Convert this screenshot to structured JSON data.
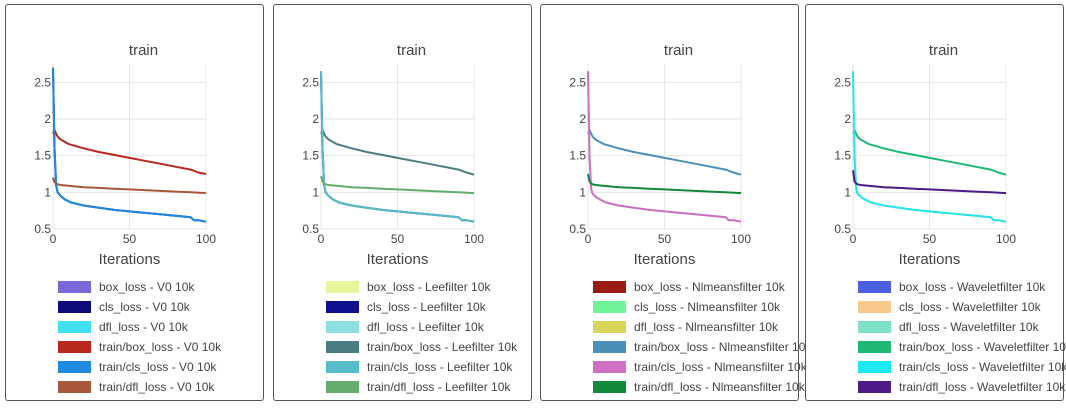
{
  "chart_data": [
    {
      "type": "line",
      "title": "train",
      "xlabel": "Iterations",
      "ylabel": "",
      "xlim": [
        0,
        100
      ],
      "ylim": [
        0.5,
        2.75
      ],
      "xticks": [
        "0",
        "50",
        "100"
      ],
      "yticks": [
        "0.5",
        "1",
        "1.5",
        "2",
        "2.5"
      ],
      "grid": true,
      "legend_position": "bottom",
      "series": [
        {
          "name": "box_loss - V0 10k",
          "color": "#7b68d8",
          "values": [],
          "x": []
        },
        {
          "name": "cls_loss - V0 10k",
          "color": "#0d0a7a",
          "x": [
            0,
            1,
            2,
            3,
            5,
            8,
            12,
            20,
            30,
            40,
            50,
            60,
            70,
            80,
            90,
            92,
            95,
            100
          ],
          "values": [
            2.7,
            1.6,
            1.1,
            1.0,
            0.95,
            0.9,
            0.86,
            0.82,
            0.79,
            0.76,
            0.74,
            0.72,
            0.7,
            0.68,
            0.66,
            0.62,
            0.62,
            0.6
          ]
        },
        {
          "name": "dfl_loss - V0 10k",
          "color": "#40e0f0",
          "values": [],
          "x": []
        },
        {
          "name": "train/box_loss - V0 10k",
          "color": "#b8281f",
          "x": [
            0,
            1,
            2,
            3,
            5,
            10,
            20,
            30,
            40,
            50,
            60,
            70,
            80,
            90,
            95,
            100
          ],
          "values": [
            1.8,
            1.85,
            1.8,
            1.76,
            1.72,
            1.66,
            1.6,
            1.55,
            1.51,
            1.47,
            1.43,
            1.39,
            1.35,
            1.31,
            1.27,
            1.25
          ]
        },
        {
          "name": "train/cls_loss - V0 10k",
          "color": "#1f8ae0",
          "x": [
            0,
            1,
            2,
            3,
            5,
            8,
            12,
            20,
            30,
            40,
            50,
            60,
            70,
            80,
            90,
            92,
            95,
            100
          ],
          "values": [
            2.7,
            1.6,
            1.1,
            1.0,
            0.95,
            0.9,
            0.86,
            0.82,
            0.79,
            0.76,
            0.74,
            0.72,
            0.7,
            0.68,
            0.66,
            0.62,
            0.62,
            0.6
          ]
        },
        {
          "name": "train/dfl_loss - V0 10k",
          "color": "#a8583a",
          "x": [
            0,
            1,
            2,
            3,
            5,
            10,
            20,
            30,
            40,
            50,
            60,
            70,
            80,
            90,
            100
          ],
          "values": [
            1.2,
            1.14,
            1.12,
            1.11,
            1.1,
            1.09,
            1.07,
            1.06,
            1.05,
            1.04,
            1.03,
            1.02,
            1.01,
            1.0,
            0.99
          ]
        }
      ]
    },
    {
      "type": "line",
      "title": "train",
      "xlabel": "Iterations",
      "ylabel": "",
      "xlim": [
        0,
        100
      ],
      "ylim": [
        0.5,
        2.75
      ],
      "xticks": [
        "0",
        "50",
        "100"
      ],
      "yticks": [
        "0.5",
        "1",
        "1.5",
        "2",
        "2.5"
      ],
      "grid": true,
      "legend_position": "bottom",
      "series": [
        {
          "name": "box_loss - Leefilter 10k",
          "color": "#e9f59a",
          "values": [],
          "x": []
        },
        {
          "name": "cls_loss - Leefilter 10k",
          "color": "#10108f",
          "x": [
            0,
            1,
            2,
            3,
            5,
            8,
            12,
            20,
            30,
            40,
            50,
            60,
            70,
            80,
            90,
            92,
            95,
            100
          ],
          "values": [
            2.65,
            1.6,
            1.1,
            1.0,
            0.95,
            0.9,
            0.86,
            0.82,
            0.79,
            0.76,
            0.74,
            0.72,
            0.7,
            0.68,
            0.66,
            0.62,
            0.62,
            0.6
          ]
        },
        {
          "name": "dfl_loss - Leefilter 10k",
          "color": "#8ddfe0",
          "values": [],
          "x": []
        },
        {
          "name": "train/box_loss - Leefilter 10k",
          "color": "#4b7d80",
          "x": [
            0,
            1,
            2,
            3,
            5,
            10,
            20,
            30,
            40,
            50,
            60,
            70,
            80,
            90,
            95,
            100
          ],
          "values": [
            1.8,
            1.85,
            1.8,
            1.76,
            1.72,
            1.66,
            1.6,
            1.55,
            1.51,
            1.47,
            1.43,
            1.39,
            1.35,
            1.31,
            1.27,
            1.24
          ]
        },
        {
          "name": "train/cls_loss - Leefilter 10k",
          "color": "#55bcc8",
          "x": [
            0,
            1,
            2,
            3,
            5,
            8,
            12,
            20,
            30,
            40,
            50,
            60,
            70,
            80,
            90,
            92,
            95,
            100
          ],
          "values": [
            2.65,
            1.6,
            1.1,
            1.0,
            0.95,
            0.9,
            0.86,
            0.82,
            0.79,
            0.76,
            0.74,
            0.72,
            0.7,
            0.68,
            0.66,
            0.62,
            0.62,
            0.6
          ]
        },
        {
          "name": "train/dfl_loss - Leefilter 10k",
          "color": "#65ad6e",
          "x": [
            0,
            1,
            2,
            3,
            5,
            10,
            20,
            30,
            40,
            50,
            60,
            70,
            80,
            90,
            100
          ],
          "values": [
            1.22,
            1.15,
            1.12,
            1.11,
            1.1,
            1.09,
            1.07,
            1.06,
            1.05,
            1.04,
            1.03,
            1.02,
            1.01,
            1.0,
            0.99
          ]
        }
      ]
    },
    {
      "type": "line",
      "title": "train",
      "xlabel": "Iterations",
      "ylabel": "",
      "xlim": [
        0,
        100
      ],
      "ylim": [
        0.5,
        2.75
      ],
      "xticks": [
        "0",
        "50",
        "100"
      ],
      "yticks": [
        "0.5",
        "1",
        "1.5",
        "2",
        "2.5"
      ],
      "grid": true,
      "legend_position": "bottom",
      "series": [
        {
          "name": "box_loss - Nlmeansfilter 10k",
          "color": "#9a1a14",
          "values": [],
          "x": []
        },
        {
          "name": "cls_loss - Nlmeansfilter 10k",
          "color": "#6ff598",
          "x": [
            0,
            1,
            2,
            3,
            5,
            8,
            12,
            20,
            30,
            40,
            50,
            60,
            70,
            80,
            90,
            92,
            95,
            100
          ],
          "values": [
            2.65,
            1.5,
            1.05,
            0.98,
            0.94,
            0.9,
            0.86,
            0.82,
            0.79,
            0.76,
            0.74,
            0.72,
            0.7,
            0.68,
            0.66,
            0.62,
            0.62,
            0.6
          ]
        },
        {
          "name": "dfl_loss - Nlmeansfilter 10k",
          "color": "#d9d45a",
          "values": [],
          "x": []
        },
        {
          "name": "train/box_loss - Nlmeansfilter 10k",
          "color": "#4a8fb8",
          "x": [
            0,
            1,
            2,
            3,
            5,
            10,
            20,
            30,
            40,
            50,
            60,
            70,
            80,
            90,
            95,
            100
          ],
          "values": [
            1.8,
            1.85,
            1.8,
            1.76,
            1.72,
            1.66,
            1.6,
            1.55,
            1.51,
            1.47,
            1.43,
            1.39,
            1.35,
            1.31,
            1.27,
            1.24
          ]
        },
        {
          "name": "train/cls_loss - Nlmeansfilter 10k",
          "color": "#d16fc4",
          "x": [
            0,
            1,
            2,
            3,
            5,
            8,
            12,
            20,
            30,
            40,
            50,
            60,
            70,
            80,
            90,
            92,
            95,
            100
          ],
          "values": [
            2.65,
            1.5,
            1.05,
            0.98,
            0.94,
            0.9,
            0.86,
            0.82,
            0.79,
            0.76,
            0.74,
            0.72,
            0.7,
            0.68,
            0.66,
            0.62,
            0.62,
            0.6
          ]
        },
        {
          "name": "train/dfl_loss - Nlmeansfilter 10k",
          "color": "#138a3a",
          "x": [
            0,
            1,
            2,
            3,
            5,
            10,
            20,
            30,
            40,
            50,
            60,
            70,
            80,
            90,
            100
          ],
          "values": [
            1.25,
            1.15,
            1.12,
            1.11,
            1.1,
            1.09,
            1.07,
            1.06,
            1.05,
            1.04,
            1.03,
            1.02,
            1.01,
            1.0,
            0.99
          ]
        }
      ]
    },
    {
      "type": "line",
      "title": "train",
      "xlabel": "Iterations",
      "ylabel": "",
      "xlim": [
        0,
        100
      ],
      "ylim": [
        0.5,
        2.75
      ],
      "xticks": [
        "0",
        "50",
        "100"
      ],
      "yticks": [
        "0.5",
        "1",
        "1.5",
        "2",
        "2.5"
      ],
      "grid": true,
      "legend_position": "bottom",
      "series": [
        {
          "name": "box_loss - Waveletfilter 10k",
          "color": "#4a60e0",
          "values": [],
          "x": []
        },
        {
          "name": "cls_loss - Waveletfilter 10k",
          "color": "#f9c98c",
          "x": [
            0,
            1,
            2,
            3,
            5,
            8,
            12,
            20,
            30,
            40,
            50,
            60,
            70,
            80,
            90,
            92,
            95,
            100
          ],
          "values": [
            2.65,
            1.5,
            1.05,
            0.98,
            0.94,
            0.9,
            0.86,
            0.82,
            0.79,
            0.76,
            0.74,
            0.72,
            0.7,
            0.68,
            0.66,
            0.62,
            0.62,
            0.6
          ]
        },
        {
          "name": "dfl_loss - Waveletfilter 10k",
          "color": "#7fe0c8",
          "values": [],
          "x": []
        },
        {
          "name": "train/box_loss - Waveletfilter 10k",
          "color": "#1eb874",
          "x": [
            0,
            1,
            2,
            3,
            5,
            10,
            20,
            30,
            40,
            50,
            60,
            70,
            80,
            90,
            95,
            100
          ],
          "values": [
            1.8,
            1.85,
            1.8,
            1.76,
            1.72,
            1.66,
            1.6,
            1.55,
            1.51,
            1.47,
            1.43,
            1.39,
            1.35,
            1.31,
            1.27,
            1.24
          ]
        },
        {
          "name": "train/cls_loss - Waveletfilter 10k",
          "color": "#1ee8f0",
          "x": [
            0,
            1,
            2,
            3,
            5,
            8,
            12,
            20,
            30,
            40,
            50,
            60,
            70,
            80,
            90,
            92,
            95,
            100
          ],
          "values": [
            2.65,
            1.5,
            1.05,
            0.98,
            0.94,
            0.9,
            0.86,
            0.82,
            0.79,
            0.76,
            0.74,
            0.72,
            0.7,
            0.68,
            0.66,
            0.62,
            0.62,
            0.6
          ]
        },
        {
          "name": "train/dfl_loss - Waveletfilter 10k",
          "color": "#4e1a88",
          "x": [
            0,
            1,
            2,
            3,
            5,
            10,
            20,
            30,
            40,
            50,
            60,
            70,
            80,
            90,
            100
          ],
          "values": [
            1.3,
            1.15,
            1.12,
            1.11,
            1.1,
            1.09,
            1.07,
            1.06,
            1.05,
            1.04,
            1.03,
            1.02,
            1.01,
            1.0,
            0.99
          ]
        }
      ]
    }
  ]
}
